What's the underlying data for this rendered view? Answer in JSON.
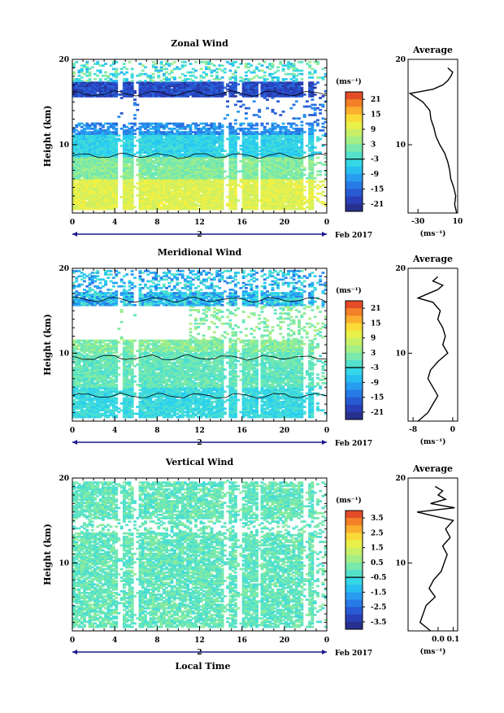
{
  "chart_data": [
    {
      "type": "heatmap",
      "title": "Zonal Wind",
      "ylabel": "Height (km)",
      "xlim": [
        0,
        24
      ],
      "ylim": [
        2,
        20
      ],
      "x_ticks": [
        "0",
        "4",
        "8",
        "12",
        "16",
        "20",
        "0"
      ],
      "y_ticks": [
        "10",
        "20"
      ],
      "day_label": "2",
      "date_label": "Feb 2017",
      "colorbar": {
        "unit": "(ms⁻¹)",
        "ticks": [
          "21",
          "15",
          "9",
          "3",
          "-3",
          "-9",
          "-15",
          "-21"
        ],
        "range": [
          -24,
          24
        ]
      },
      "profile": {
        "title": "Average",
        "xlabel": "(ms⁻¹)",
        "x_ticks": [
          "-30",
          "10"
        ],
        "y_ticks": [
          "10",
          "20"
        ],
        "xlim": [
          -40,
          10
        ],
        "height": [
          2,
          3,
          4,
          5,
          6,
          7,
          8,
          9,
          10,
          11,
          12,
          13,
          14,
          15,
          16,
          16.5,
          17,
          17.5,
          18,
          18.5,
          19
        ],
        "value": [
          9,
          7,
          8,
          6,
          3,
          2,
          0,
          -3,
          -8,
          -12,
          -14,
          -17,
          -18,
          -25,
          -38,
          -15,
          -5,
          0,
          3,
          5,
          0
        ]
      }
    },
    {
      "type": "heatmap",
      "title": "Meridional Wind",
      "ylabel": "Height (km)",
      "xlim": [
        0,
        24
      ],
      "ylim": [
        2,
        20
      ],
      "x_ticks": [
        "0",
        "4",
        "8",
        "12",
        "16",
        "20",
        "0"
      ],
      "y_ticks": [
        "10",
        "20"
      ],
      "day_label": "2",
      "date_label": "Feb 2017",
      "colorbar": {
        "unit": "(ms⁻¹)",
        "ticks": [
          "21",
          "15",
          "9",
          "3",
          "-3",
          "-9",
          "-15",
          "-21"
        ],
        "range": [
          -24,
          24
        ]
      },
      "profile": {
        "title": "Average",
        "xlabel": "(ms⁻¹)",
        "x_ticks": [
          "-8",
          "0"
        ],
        "y_ticks": [
          "10",
          "20"
        ],
        "xlim": [
          -9,
          1
        ],
        "height": [
          2,
          3,
          4,
          5,
          6,
          7,
          8,
          9,
          10,
          11,
          12,
          13,
          14,
          15,
          16,
          16.5,
          17,
          17.5,
          18,
          18.5,
          19
        ],
        "value": [
          -7,
          -5,
          -4,
          -3,
          -4,
          -5,
          -4.5,
          -3,
          -1,
          -2,
          -1.5,
          -2,
          -3,
          -2.5,
          -4,
          -7,
          -5,
          -3,
          -2,
          -4,
          -3
        ]
      }
    },
    {
      "type": "heatmap",
      "title": "Vertical Wind",
      "ylabel": "Height (km)",
      "xlabel": "Local Time",
      "xlim": [
        0,
        24
      ],
      "ylim": [
        2,
        20
      ],
      "x_ticks": [
        "0",
        "4",
        "8",
        "12",
        "16",
        "20",
        "0"
      ],
      "y_ticks": [
        "10",
        "20"
      ],
      "day_label": "2",
      "date_label": "Feb 2017",
      "colorbar": {
        "unit": "(ms⁻¹)",
        "ticks": [
          "3.5",
          "2.5",
          "1.5",
          "0.5",
          "-0.5",
          "-1.5",
          "-2.5",
          "-3.5"
        ],
        "range": [
          -4,
          4
        ]
      },
      "profile": {
        "title": "Average",
        "xlabel": "(ms⁻¹)",
        "x_ticks": [
          "0.0",
          "0.1"
        ],
        "y_ticks": [
          "10",
          "20"
        ],
        "xlim": [
          -0.2,
          0.13
        ],
        "height": [
          2,
          3,
          4,
          5,
          6,
          7,
          8,
          9,
          10,
          11,
          12,
          13,
          14,
          15,
          16,
          16.5,
          17,
          17.5,
          18,
          18.5,
          19
        ],
        "value": [
          -0.05,
          -0.12,
          -0.1,
          -0.08,
          -0.02,
          -0.06,
          -0.03,
          0.02,
          0.04,
          0.06,
          0.03,
          0.08,
          0.05,
          0.1,
          -0.14,
          0.11,
          -0.05,
          0.05,
          0.0,
          0.03,
          -0.02
        ]
      }
    }
  ]
}
